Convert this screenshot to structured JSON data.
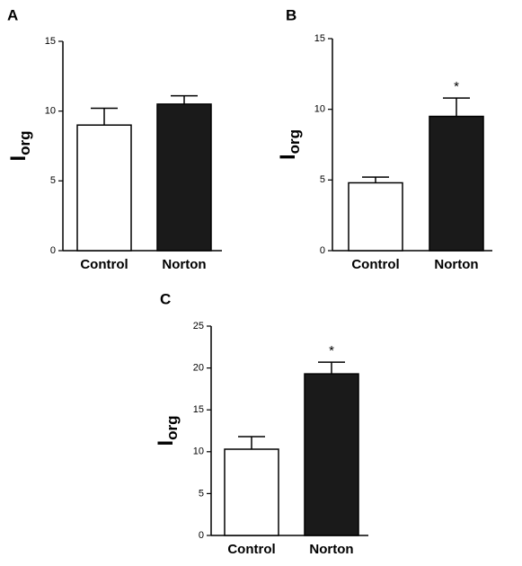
{
  "chart_data": [
    {
      "type": "bar",
      "panel": "A",
      "ylabel": "I",
      "ylabel_sub": "org",
      "categories": [
        "Control",
        "Norton"
      ],
      "values": [
        9.0,
        10.5
      ],
      "errors": [
        1.2,
        0.6
      ],
      "annotations": [
        null,
        null
      ],
      "colors": [
        "#ffffff",
        "#1a1a1a"
      ],
      "ylim": [
        0,
        15
      ],
      "yticks": [
        0,
        5,
        10,
        15
      ]
    },
    {
      "type": "bar",
      "panel": "B",
      "ylabel": "I",
      "ylabel_sub": "org",
      "categories": [
        "Control",
        "Norton"
      ],
      "values": [
        4.8,
        9.5
      ],
      "errors": [
        0.4,
        1.3
      ],
      "annotations": [
        null,
        "*"
      ],
      "colors": [
        "#ffffff",
        "#1a1a1a"
      ],
      "ylim": [
        0,
        15
      ],
      "yticks": [
        0,
        5,
        10,
        15
      ]
    },
    {
      "type": "bar",
      "panel": "C",
      "ylabel": "I",
      "ylabel_sub": "org",
      "categories": [
        "Control",
        "Norton"
      ],
      "values": [
        10.3,
        19.3
      ],
      "errors": [
        1.5,
        1.4
      ],
      "annotations": [
        null,
        "*"
      ],
      "colors": [
        "#ffffff",
        "#1a1a1a"
      ],
      "ylim": [
        0,
        25
      ],
      "yticks": [
        0,
        5,
        10,
        15,
        20,
        25
      ]
    }
  ]
}
